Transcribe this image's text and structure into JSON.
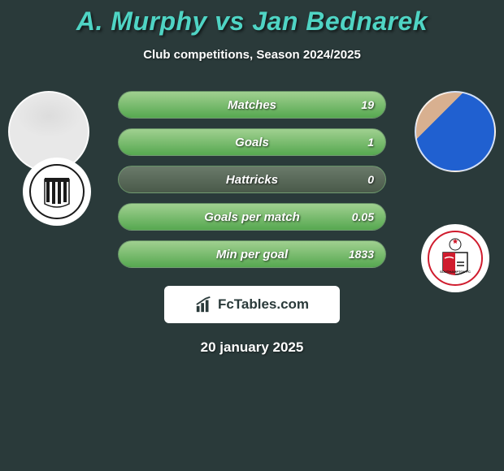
{
  "title": "A. Murphy vs Jan Bednarek",
  "subtitle": "Club competitions, Season 2024/2025",
  "date": "20 january 2025",
  "footer_brand": "FcTables.com",
  "colors": {
    "background": "#2a3a3a",
    "title": "#4fd4c4",
    "text": "#ffffff",
    "bar_bg_top": "#6a7a6a",
    "bar_bg_bottom": "#4a5a4a",
    "bar_fill_top": "#a0d090",
    "bar_fill_bottom": "#56a850",
    "bar_border": "#78b478"
  },
  "players": {
    "left": {
      "name": "A. Murphy",
      "club": "Newcastle United"
    },
    "right": {
      "name": "Jan Bednarek",
      "club": "Southampton"
    }
  },
  "stats": [
    {
      "label": "Matches",
      "right_value": "19",
      "right_fill_pct": 100
    },
    {
      "label": "Goals",
      "right_value": "1",
      "right_fill_pct": 100
    },
    {
      "label": "Hattricks",
      "right_value": "0",
      "right_fill_pct": 0
    },
    {
      "label": "Goals per match",
      "right_value": "0.05",
      "right_fill_pct": 100
    },
    {
      "label": "Min per goal",
      "right_value": "1833",
      "right_fill_pct": 100
    }
  ]
}
